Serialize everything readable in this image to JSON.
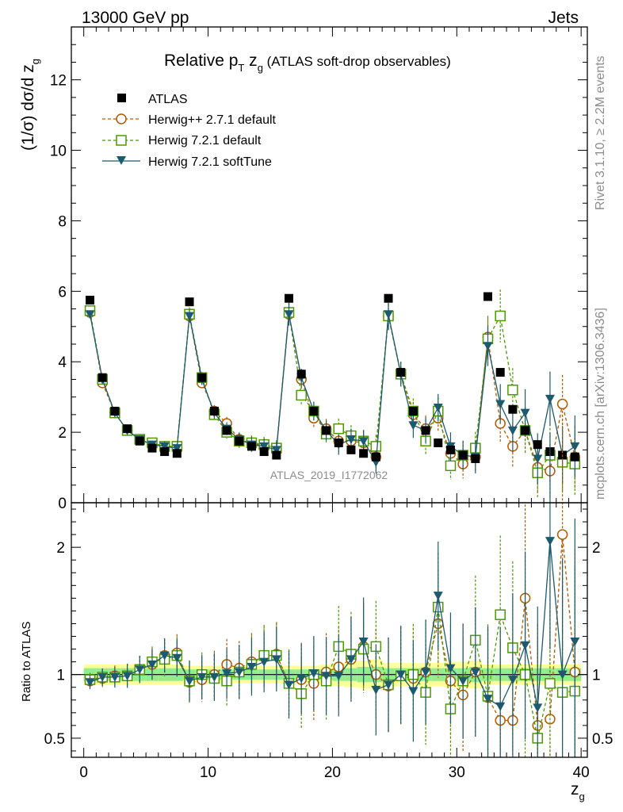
{
  "header": {
    "left": "13000 GeV pp",
    "right": "Jets"
  },
  "side": {
    "rivet": "Rivet 3.1.10, ≥ 2.2M events",
    "mcplots": "mcplots.cern.ch [arXiv:1306.3436]"
  },
  "plot_title": {
    "main": "Relative p",
    "sub_t": "T",
    "main2": " z",
    "sub_g": "g",
    "paren": " (ATLAS soft-drop observables)"
  },
  "analysis_label": "ATLAS_2019_I1772062",
  "ylabel_main": {
    "part1": "(1/σ) dσ/d z",
    "sub": "g"
  },
  "ylabel_ratio": "Ratio to ATLAS",
  "xlabel": {
    "main": "z",
    "sub": "g"
  },
  "legend": [
    {
      "label": "ATLAS"
    },
    {
      "label": "Herwig++ 2.7.1 default"
    },
    {
      "label": "Herwig 7.2.1 default"
    },
    {
      "label": "Herwig 7.2.1 softTune"
    }
  ],
  "colors": {
    "atlas": "#000000",
    "herwigpp": "#b35900",
    "herwig7": "#4d9900",
    "softtune": "#1d5a6e",
    "band_inner": "#90ee90",
    "band_outer": "#ffff99"
  },
  "chart_data": {
    "type": "scatter",
    "x": [
      0.5,
      1.5,
      2.5,
      3.5,
      4.5,
      5.5,
      6.5,
      7.5,
      8.5,
      9.5,
      10.5,
      11.5,
      12.5,
      13.5,
      14.5,
      15.5,
      16.5,
      17.5,
      18.5,
      19.5,
      20.5,
      21.5,
      22.5,
      23.5,
      24.5,
      25.5,
      26.5,
      27.5,
      28.5,
      29.5,
      30.5,
      31.5,
      32.5,
      33.5,
      34.5,
      35.5,
      36.5,
      37.5,
      38.5,
      39.5
    ],
    "xlim": [
      -1,
      40.5
    ],
    "main_ylim": [
      0,
      13.5
    ],
    "ratio_ylim": [
      0.35,
      2.35
    ],
    "x_ticks": [
      0,
      10,
      20,
      30,
      40
    ],
    "main_y_ticks": [
      0,
      2,
      4,
      6,
      8,
      10,
      12
    ],
    "ratio_y_ticks": [
      0.5,
      1,
      2
    ],
    "series": [
      {
        "name": "ATLAS",
        "values": [
          5.75,
          3.55,
          2.6,
          2.1,
          1.75,
          1.55,
          1.45,
          1.4,
          5.7,
          3.55,
          2.6,
          2.05,
          1.75,
          1.6,
          1.45,
          1.35,
          5.8,
          3.65,
          2.6,
          2.05,
          1.7,
          1.5,
          1.4,
          1.3,
          5.8,
          3.7,
          2.6,
          2.05,
          1.7,
          1.5,
          1.35,
          1.25,
          5.85,
          3.7,
          2.65,
          2.05,
          1.65,
          1.45,
          1.35,
          1.3
        ]
      },
      {
        "name": "Herwig++ 2.7.1 default",
        "values": [
          5.4,
          3.4,
          2.55,
          2.05,
          1.8,
          1.65,
          1.6,
          1.55,
          5.3,
          3.4,
          2.6,
          2.25,
          1.8,
          1.7,
          1.6,
          1.5,
          5.35,
          3.5,
          2.4,
          2.1,
          1.75,
          1.75,
          1.7,
          1.3,
          5.3,
          3.65,
          2.5,
          2.1,
          2.4,
          1.4,
          1.1,
          1.3,
          4.7,
          2.25,
          1.6,
          2.05,
          1.0,
          0.9,
          2.8,
          1.3
        ]
      },
      {
        "name": "Herwig 7.2.1 default",
        "values": [
          5.45,
          3.5,
          2.55,
          2.05,
          1.8,
          1.7,
          1.6,
          1.6,
          5.35,
          3.55,
          2.5,
          2.0,
          1.75,
          1.7,
          1.65,
          1.55,
          5.4,
          3.05,
          2.6,
          1.95,
          2.1,
          1.9,
          1.75,
          1.6,
          5.3,
          3.65,
          2.6,
          1.75,
          2.6,
          1.05,
          1.35,
          1.55,
          4.65,
          5.3,
          3.2,
          2.05,
          0.85,
          1.35,
          1.15,
          1.1
        ]
      },
      {
        "name": "Herwig 7.2.1 softTune",
        "values": [
          5.35,
          3.5,
          2.55,
          2.05,
          1.8,
          1.65,
          1.6,
          1.55,
          5.3,
          3.5,
          2.55,
          2.1,
          1.8,
          1.65,
          1.6,
          1.5,
          5.35,
          3.55,
          2.6,
          2.05,
          1.65,
          1.8,
          1.75,
          1.15,
          5.35,
          3.65,
          2.2,
          2.05,
          2.7,
          1.6,
          1.35,
          1.3,
          4.45,
          2.8,
          2.05,
          2.55,
          1.25,
          2.95,
          1.35,
          1.6
        ]
      }
    ],
    "ratio_series": [
      {
        "name": "Herwig++ 2.7.1 default",
        "values": [
          0.95,
          0.97,
          0.99,
          0.99,
          1.04,
          1.08,
          1.15,
          1.17,
          0.94,
          0.96,
          1.0,
          1.08,
          1.05,
          1.1,
          1.14,
          1.16,
          0.93,
          0.96,
          0.93,
          1.02,
          1.06,
          1.12,
          1.22,
          1.0,
          0.91,
          0.99,
          0.97,
          1.02,
          1.4,
          0.95,
          0.84,
          1.02,
          0.82,
          0.64,
          0.64,
          1.6,
          0.6,
          0.65,
          2.1,
          1.02
        ]
      },
      {
        "name": "Herwig 7.2.1 default",
        "values": [
          0.96,
          0.98,
          0.98,
          0.99,
          1.04,
          1.1,
          1.12,
          1.15,
          0.95,
          1.0,
          0.97,
          0.95,
          1.02,
          1.08,
          1.15,
          1.15,
          0.93,
          0.85,
          1.0,
          0.95,
          1.22,
          1.16,
          1.2,
          1.22,
          0.92,
          0.99,
          1.0,
          0.86,
          1.53,
          0.73,
          0.95,
          1.27,
          0.83,
          1.47,
          1.21,
          1.0,
          0.5,
          0.93,
          0.86,
          0.87
        ]
      },
      {
        "name": "Herwig 7.2.1 softTune",
        "values": [
          0.94,
          0.98,
          0.98,
          0.99,
          1.04,
          1.08,
          1.15,
          1.13,
          0.95,
          0.98,
          0.98,
          1.01,
          1.02,
          1.06,
          1.1,
          1.12,
          0.92,
          0.97,
          1.01,
          0.99,
          0.99,
          1.12,
          1.26,
          0.88,
          0.92,
          1.0,
          0.87,
          1.02,
          1.62,
          1.05,
          0.95,
          1.02,
          0.81,
          0.75,
          0.96,
          1.23,
          0.74,
          2.05,
          1.0,
          1.26
        ]
      }
    ],
    "ratio_bands": {
      "inner": [
        0.05,
        0.05,
        0.05,
        0.05,
        0.05,
        0.05,
        0.05,
        0.05,
        0.04,
        0.04,
        0.04,
        0.04,
        0.04,
        0.04,
        0.04,
        0.04,
        0.04,
        0.04,
        0.04,
        0.04,
        0.05,
        0.05,
        0.06,
        0.06,
        0.05,
        0.05,
        0.05,
        0.05,
        0.05,
        0.05,
        0.05,
        0.06,
        0.05,
        0.05,
        0.05,
        0.05,
        0.05,
        0.05,
        0.05,
        0.05
      ],
      "outer": [
        0.08,
        0.08,
        0.08,
        0.08,
        0.08,
        0.08,
        0.08,
        0.08,
        0.07,
        0.07,
        0.07,
        0.07,
        0.07,
        0.07,
        0.07,
        0.07,
        0.07,
        0.07,
        0.07,
        0.08,
        0.09,
        0.1,
        0.11,
        0.12,
        0.09,
        0.09,
        0.09,
        0.09,
        0.09,
        0.1,
        0.1,
        0.11,
        0.08,
        0.08,
        0.08,
        0.08,
        0.08,
        0.08,
        0.08,
        0.08
      ]
    },
    "legend_position": "top-left",
    "grid": false
  }
}
